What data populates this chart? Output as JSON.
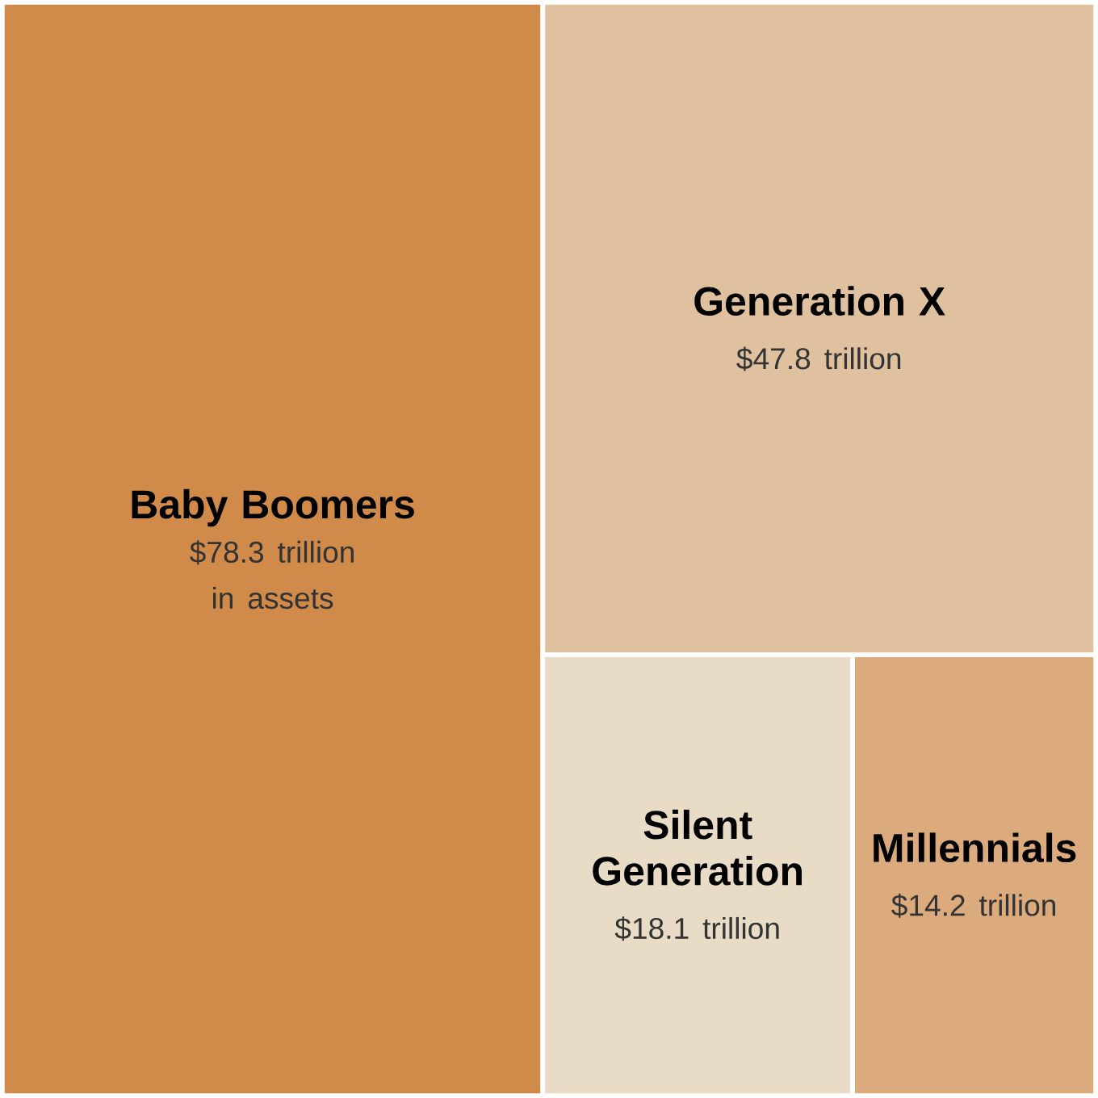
{
  "chart_data": {
    "type": "other",
    "categories": [
      "Baby Boomers",
      "Generation X",
      "Silent Generation",
      "Millennials"
    ],
    "values": [
      78.3,
      47.8,
      18.1,
      14.2
    ],
    "colors": [
      "#d08b4b",
      "#e0c19f",
      "#e8dcc6",
      "#dcab7d"
    ],
    "value_labels": [
      "$78.3 trillion",
      "$47.8 trillion",
      "$18.1 trillion",
      "$14.2 trillion"
    ],
    "annotations": [
      {
        "text": "in assets",
        "x": "Baby Boomers"
      }
    ]
  }
}
